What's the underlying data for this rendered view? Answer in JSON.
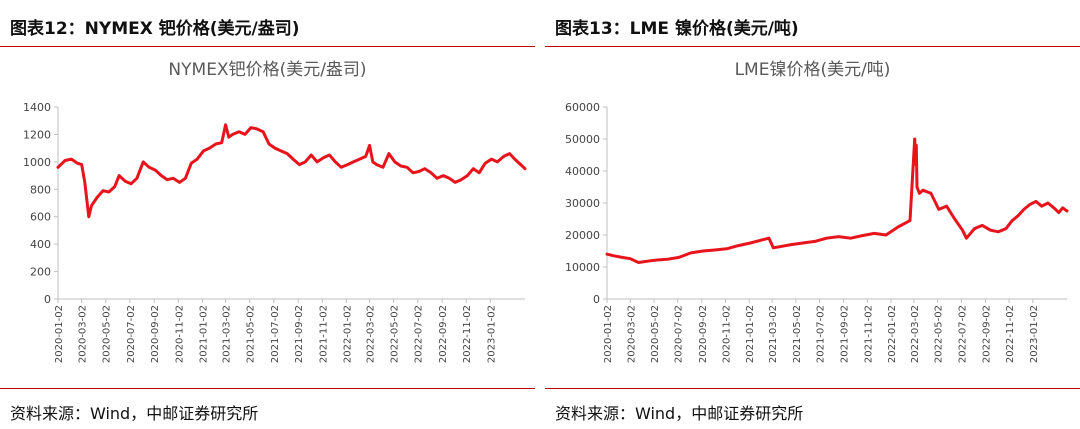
{
  "charts": [
    {
      "fig_title": "图表12：NYMEX 钯价格(美元/盎司)",
      "source": "资料来源：Wind，中邮证券研究所",
      "chart_data": {
        "type": "line",
        "title": "NYMEX钯价格(美元/盎司)",
        "xlabel": "",
        "ylabel": "",
        "ylim": [
          0,
          1400
        ],
        "yticks": [
          0,
          200,
          400,
          600,
          800,
          1000,
          1200,
          1400
        ],
        "xticks": [
          "2020-01-02",
          "2020-03-02",
          "2020-05-02",
          "2020-07-02",
          "2020-09-02",
          "2020-11-02",
          "2021-01-02",
          "2021-03-02",
          "2021-05-02",
          "2021-07-02",
          "2021-09-02",
          "2021-11-02",
          "2022-01-02",
          "2022-03-02",
          "2022-05-02",
          "2022-07-02",
          "2022-09-02",
          "2022-11-02",
          "2023-01-02"
        ],
        "xrange": [
          "2020-01-02",
          "2023-03-31"
        ],
        "grid": false,
        "legend": "none",
        "line_color": "#e8141c",
        "series": [
          {
            "x": [
              "2020-01-02",
              "2020-01-20",
              "2020-02-05",
              "2020-02-20",
              "2020-03-02",
              "2020-03-10",
              "2020-03-16",
              "2020-03-20",
              "2020-03-27",
              "2020-04-10",
              "2020-04-25",
              "2020-05-10",
              "2020-05-25",
              "2020-06-05",
              "2020-06-20",
              "2020-07-05",
              "2020-07-20",
              "2020-08-05",
              "2020-08-20",
              "2020-09-05",
              "2020-09-20",
              "2020-10-05",
              "2020-10-20",
              "2020-11-05",
              "2020-11-20",
              "2020-12-05",
              "2020-12-20",
              "2021-01-05",
              "2021-01-20",
              "2021-02-05",
              "2021-02-20",
              "2021-03-02",
              "2021-03-10",
              "2021-03-20",
              "2021-04-05",
              "2021-04-20",
              "2021-05-05",
              "2021-05-20",
              "2021-06-05",
              "2021-06-20",
              "2021-07-05",
              "2021-07-20",
              "2021-08-05",
              "2021-08-20",
              "2021-09-05",
              "2021-09-20",
              "2021-10-05",
              "2021-10-20",
              "2021-11-05",
              "2021-11-20",
              "2021-12-05",
              "2021-12-20",
              "2022-01-05",
              "2022-01-20",
              "2022-02-05",
              "2022-02-20",
              "2022-03-02",
              "2022-03-10",
              "2022-03-20",
              "2022-04-05",
              "2022-04-20",
              "2022-05-05",
              "2022-05-20",
              "2022-06-05",
              "2022-06-20",
              "2022-07-05",
              "2022-07-20",
              "2022-08-05",
              "2022-08-20",
              "2022-09-05",
              "2022-09-20",
              "2022-10-05",
              "2022-10-20",
              "2022-11-05",
              "2022-11-20",
              "2022-12-05",
              "2022-12-20",
              "2023-01-05",
              "2023-01-20",
              "2023-02-05",
              "2023-02-20",
              "2023-03-05",
              "2023-03-20",
              "2023-03-31"
            ],
            "values": [
              960,
              1010,
              1020,
              990,
              980,
              850,
              700,
              600,
              680,
              740,
              790,
              780,
              820,
              900,
              860,
              840,
              880,
              1000,
              960,
              940,
              900,
              870,
              880,
              850,
              880,
              990,
              1020,
              1080,
              1100,
              1130,
              1140,
              1270,
              1180,
              1200,
              1220,
              1200,
              1250,
              1240,
              1220,
              1130,
              1100,
              1080,
              1060,
              1020,
              980,
              1000,
              1050,
              1000,
              1030,
              1050,
              1000,
              960,
              980,
              1000,
              1020,
              1040,
              1120,
              1000,
              980,
              960,
              1060,
              1000,
              970,
              960,
              920,
              930,
              950,
              920,
              880,
              900,
              880,
              850,
              870,
              900,
              950,
              920,
              990,
              1020,
              1000,
              1040,
              1060,
              1020,
              980,
              950
            ]
          }
        ]
      }
    },
    {
      "fig_title": "图表13：LME 镍价格(美元/吨)",
      "source": "资料来源：Wind，中邮证券研究所",
      "chart_data": {
        "type": "line",
        "title": "LME镍价格(美元/吨)",
        "xlabel": "",
        "ylabel": "",
        "ylim": [
          0,
          60000
        ],
        "yticks": [
          0,
          10000,
          20000,
          30000,
          40000,
          50000,
          60000
        ],
        "xticks": [
          "2020-01-02",
          "2020-03-02",
          "2020-05-02",
          "2020-07-02",
          "2020-09-02",
          "2020-11-02",
          "2021-01-02",
          "2021-03-02",
          "2021-05-02",
          "2021-07-02",
          "2021-09-02",
          "2021-11-02",
          "2022-01-02",
          "2022-03-02",
          "2022-05-02",
          "2022-07-02",
          "2022-09-02",
          "2022-11-02",
          "2023-01-02"
        ],
        "xrange": [
          "2020-01-02",
          "2023-03-31"
        ],
        "grid": false,
        "legend": "none",
        "line_color": "#e8141c",
        "series": [
          {
            "x": [
              "2020-01-02",
              "2020-01-20",
              "2020-02-10",
              "2020-03-02",
              "2020-03-23",
              "2020-04-15",
              "2020-05-10",
              "2020-06-05",
              "2020-07-05",
              "2020-08-05",
              "2020-09-05",
              "2020-10-05",
              "2020-11-05",
              "2020-12-05",
              "2021-01-05",
              "2021-02-05",
              "2021-02-22",
              "2021-03-05",
              "2021-03-20",
              "2021-04-20",
              "2021-05-20",
              "2021-06-20",
              "2021-07-20",
              "2021-08-20",
              "2021-09-20",
              "2021-10-20",
              "2021-11-20",
              "2021-12-20",
              "2022-01-20",
              "2022-02-20",
              "2022-03-04",
              "2022-03-07",
              "2022-03-08",
              "2022-03-10",
              "2022-03-16",
              "2022-03-25",
              "2022-04-15",
              "2022-05-05",
              "2022-05-25",
              "2022-06-15",
              "2022-07-05",
              "2022-07-15",
              "2022-08-05",
              "2022-08-25",
              "2022-09-15",
              "2022-10-05",
              "2022-10-25",
              "2022-11-10",
              "2022-11-25",
              "2022-12-10",
              "2022-12-25",
              "2023-01-10",
              "2023-01-25",
              "2023-02-10",
              "2023-02-25",
              "2023-03-10",
              "2023-03-20",
              "2023-03-31"
            ],
            "values": [
              14000,
              13500,
              13000,
              12600,
              11400,
              11800,
              12200,
              12400,
              13000,
              14400,
              15000,
              15300,
              15700,
              16700,
              17500,
              18500,
              19000,
              16000,
              16300,
              17000,
              17500,
              18000,
              19000,
              19500,
              19000,
              19800,
              20500,
              20000,
              22500,
              24500,
              50000,
              42000,
              48000,
              35000,
              33000,
              34000,
              33000,
              28000,
              29000,
              25000,
              21500,
              19000,
              22000,
              23000,
              21500,
              21000,
              22000,
              24500,
              26000,
              28000,
              29500,
              30500,
              29000,
              30000,
              28500,
              27000,
              28500,
              27500
            ]
          }
        ]
      }
    }
  ]
}
